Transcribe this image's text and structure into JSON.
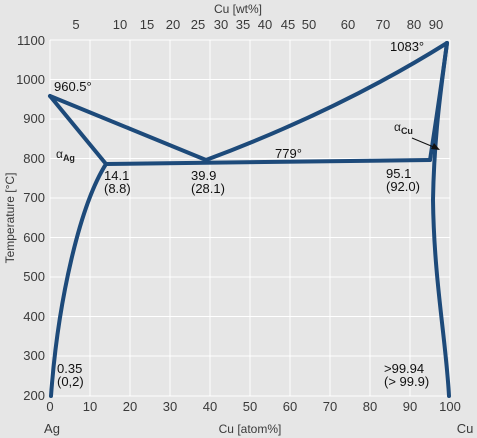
{
  "axes": {
    "top_title": "Cu [wt%]",
    "bottom_title": "Cu [atom%]",
    "left_title": "Temperature [°C]",
    "left_end_label": "Ag",
    "right_end_label": "Cu",
    "y_ticks": [
      "200",
      "300",
      "400",
      "500",
      "600",
      "700",
      "800",
      "900",
      "1000",
      "1100"
    ],
    "x_ticks": [
      "0",
      "10",
      "20",
      "30",
      "40",
      "50",
      "60",
      "70",
      "80",
      "90",
      "100"
    ],
    "top_ticks": [
      "5",
      "10",
      "15",
      "20",
      "25",
      "30",
      "35",
      "40",
      "45",
      "50",
      "60",
      "70",
      "80",
      "90"
    ]
  },
  "annotations": {
    "ag_melt": "960.5°",
    "cu_melt": "1083°",
    "eutectic_temp": "779°",
    "left_sol": "14.1",
    "left_sol_paren": "(8.8)",
    "eutectic_comp": "39.9",
    "eutectic_comp_paren": "(28.1)",
    "right_sol": "95.1",
    "right_sol_paren": "(92.0)",
    "left_low": "0.35",
    "left_low_paren": "(0,2)",
    "right_low": ">99.94",
    "right_low_paren": "(> 99.9)"
  },
  "phases": {
    "alpha_ag": "α",
    "alpha_ag_sub": "Ag",
    "alpha_cu": "α",
    "alpha_cu_sub": "Cu"
  },
  "colors": {
    "curve": "#1d4a7a",
    "grid": "#ffffff",
    "background": "#e6e6e6"
  }
}
